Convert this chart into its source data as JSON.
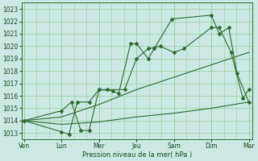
{
  "xlabel": "Pression niveau de la mer( hPa )",
  "bg_color": "#cce8e4",
  "grid_color": "#99cc99",
  "line_color": "#2d6e2d",
  "ylim_min": 1012.5,
  "ylim_max": 1023.5,
  "xlim_min": -0.2,
  "xlim_max": 19.3,
  "x_major_pos": [
    0,
    3.17,
    6.33,
    9.5,
    12.67,
    15.83,
    19.0
  ],
  "x_major_labels": [
    "Ven",
    "Lun",
    "Mer",
    "Jeu",
    "Sam",
    "Dim",
    "Mar"
  ],
  "s1_x": [
    0,
    3.17,
    3.8,
    4.5,
    5.5,
    6.33,
    7.5,
    8.0,
    9.0,
    9.5,
    10.5,
    11.0,
    12.5,
    15.83,
    16.5,
    17.3,
    18.0,
    19.0
  ],
  "s1_y": [
    1014.0,
    1013.1,
    1012.9,
    1015.5,
    1015.5,
    1016.5,
    1016.4,
    1016.2,
    1020.2,
    1020.2,
    1019.0,
    1019.8,
    1022.2,
    1022.5,
    1021.0,
    1021.5,
    1017.8,
    1015.5
  ],
  "s2_x": [
    0,
    3.17,
    4.0,
    4.8,
    5.5,
    6.33,
    7.0,
    8.5,
    9.5,
    10.5,
    11.5,
    12.67,
    13.5,
    15.83,
    16.5,
    17.5,
    18.5,
    19.0
  ],
  "s2_y": [
    1014.0,
    1014.8,
    1015.5,
    1013.2,
    1013.2,
    1016.5,
    1016.5,
    1016.5,
    1019.0,
    1019.8,
    1020.0,
    1019.5,
    1019.8,
    1021.5,
    1021.5,
    1019.5,
    1015.8,
    1016.5
  ],
  "t1_x": [
    0,
    3.17,
    6.33,
    9.5,
    12.67,
    15.83,
    19.0
  ],
  "t1_y": [
    1014.0,
    1014.3,
    1015.3,
    1016.5,
    1017.5,
    1018.5,
    1019.5
  ],
  "t2_x": [
    0,
    3.17,
    6.33,
    9.5,
    12.67,
    15.83,
    19.0
  ],
  "t2_y": [
    1014.0,
    1013.7,
    1013.9,
    1014.3,
    1014.6,
    1015.0,
    1015.5
  ]
}
